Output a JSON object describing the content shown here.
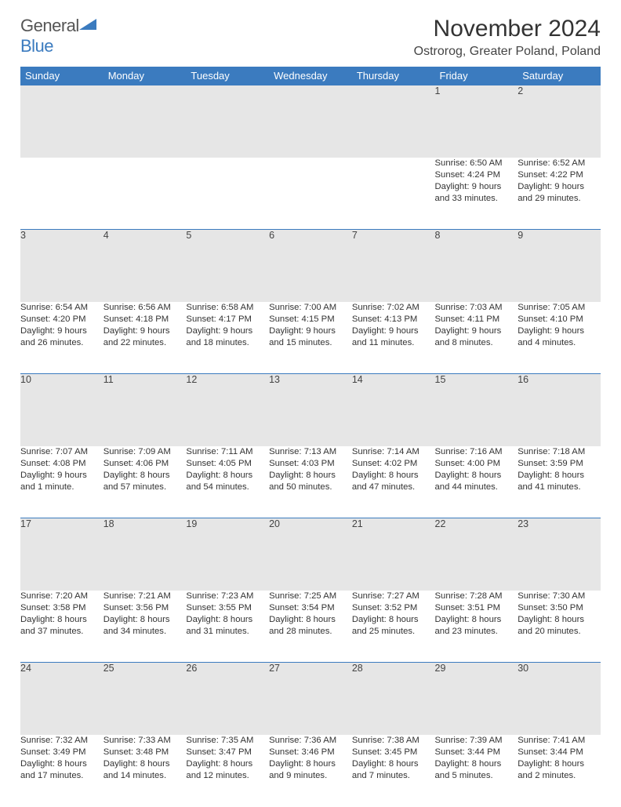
{
  "brand": {
    "part1": "General",
    "part2": "Blue"
  },
  "title": "November 2024",
  "location": "Ostrorog, Greater Poland, Poland",
  "colors": {
    "header_bg": "#3b7bbf",
    "header_text": "#ffffff",
    "daynum_bg": "#e6e6e6",
    "row_border": "#3b7bbf",
    "page_bg": "#ffffff",
    "text": "#333333"
  },
  "weekdays": [
    "Sunday",
    "Monday",
    "Tuesday",
    "Wednesday",
    "Thursday",
    "Friday",
    "Saturday"
  ],
  "weeks": [
    [
      null,
      null,
      null,
      null,
      null,
      {
        "n": "1",
        "sr": "Sunrise: 6:50 AM",
        "ss": "Sunset: 4:24 PM",
        "d1": "Daylight: 9 hours",
        "d2": "and 33 minutes."
      },
      {
        "n": "2",
        "sr": "Sunrise: 6:52 AM",
        "ss": "Sunset: 4:22 PM",
        "d1": "Daylight: 9 hours",
        "d2": "and 29 minutes."
      }
    ],
    [
      {
        "n": "3",
        "sr": "Sunrise: 6:54 AM",
        "ss": "Sunset: 4:20 PM",
        "d1": "Daylight: 9 hours",
        "d2": "and 26 minutes."
      },
      {
        "n": "4",
        "sr": "Sunrise: 6:56 AM",
        "ss": "Sunset: 4:18 PM",
        "d1": "Daylight: 9 hours",
        "d2": "and 22 minutes."
      },
      {
        "n": "5",
        "sr": "Sunrise: 6:58 AM",
        "ss": "Sunset: 4:17 PM",
        "d1": "Daylight: 9 hours",
        "d2": "and 18 minutes."
      },
      {
        "n": "6",
        "sr": "Sunrise: 7:00 AM",
        "ss": "Sunset: 4:15 PM",
        "d1": "Daylight: 9 hours",
        "d2": "and 15 minutes."
      },
      {
        "n": "7",
        "sr": "Sunrise: 7:02 AM",
        "ss": "Sunset: 4:13 PM",
        "d1": "Daylight: 9 hours",
        "d2": "and 11 minutes."
      },
      {
        "n": "8",
        "sr": "Sunrise: 7:03 AM",
        "ss": "Sunset: 4:11 PM",
        "d1": "Daylight: 9 hours",
        "d2": "and 8 minutes."
      },
      {
        "n": "9",
        "sr": "Sunrise: 7:05 AM",
        "ss": "Sunset: 4:10 PM",
        "d1": "Daylight: 9 hours",
        "d2": "and 4 minutes."
      }
    ],
    [
      {
        "n": "10",
        "sr": "Sunrise: 7:07 AM",
        "ss": "Sunset: 4:08 PM",
        "d1": "Daylight: 9 hours",
        "d2": "and 1 minute."
      },
      {
        "n": "11",
        "sr": "Sunrise: 7:09 AM",
        "ss": "Sunset: 4:06 PM",
        "d1": "Daylight: 8 hours",
        "d2": "and 57 minutes."
      },
      {
        "n": "12",
        "sr": "Sunrise: 7:11 AM",
        "ss": "Sunset: 4:05 PM",
        "d1": "Daylight: 8 hours",
        "d2": "and 54 minutes."
      },
      {
        "n": "13",
        "sr": "Sunrise: 7:13 AM",
        "ss": "Sunset: 4:03 PM",
        "d1": "Daylight: 8 hours",
        "d2": "and 50 minutes."
      },
      {
        "n": "14",
        "sr": "Sunrise: 7:14 AM",
        "ss": "Sunset: 4:02 PM",
        "d1": "Daylight: 8 hours",
        "d2": "and 47 minutes."
      },
      {
        "n": "15",
        "sr": "Sunrise: 7:16 AM",
        "ss": "Sunset: 4:00 PM",
        "d1": "Daylight: 8 hours",
        "d2": "and 44 minutes."
      },
      {
        "n": "16",
        "sr": "Sunrise: 7:18 AM",
        "ss": "Sunset: 3:59 PM",
        "d1": "Daylight: 8 hours",
        "d2": "and 41 minutes."
      }
    ],
    [
      {
        "n": "17",
        "sr": "Sunrise: 7:20 AM",
        "ss": "Sunset: 3:58 PM",
        "d1": "Daylight: 8 hours",
        "d2": "and 37 minutes."
      },
      {
        "n": "18",
        "sr": "Sunrise: 7:21 AM",
        "ss": "Sunset: 3:56 PM",
        "d1": "Daylight: 8 hours",
        "d2": "and 34 minutes."
      },
      {
        "n": "19",
        "sr": "Sunrise: 7:23 AM",
        "ss": "Sunset: 3:55 PM",
        "d1": "Daylight: 8 hours",
        "d2": "and 31 minutes."
      },
      {
        "n": "20",
        "sr": "Sunrise: 7:25 AM",
        "ss": "Sunset: 3:54 PM",
        "d1": "Daylight: 8 hours",
        "d2": "and 28 minutes."
      },
      {
        "n": "21",
        "sr": "Sunrise: 7:27 AM",
        "ss": "Sunset: 3:52 PM",
        "d1": "Daylight: 8 hours",
        "d2": "and 25 minutes."
      },
      {
        "n": "22",
        "sr": "Sunrise: 7:28 AM",
        "ss": "Sunset: 3:51 PM",
        "d1": "Daylight: 8 hours",
        "d2": "and 23 minutes."
      },
      {
        "n": "23",
        "sr": "Sunrise: 7:30 AM",
        "ss": "Sunset: 3:50 PM",
        "d1": "Daylight: 8 hours",
        "d2": "and 20 minutes."
      }
    ],
    [
      {
        "n": "24",
        "sr": "Sunrise: 7:32 AM",
        "ss": "Sunset: 3:49 PM",
        "d1": "Daylight: 8 hours",
        "d2": "and 17 minutes."
      },
      {
        "n": "25",
        "sr": "Sunrise: 7:33 AM",
        "ss": "Sunset: 3:48 PM",
        "d1": "Daylight: 8 hours",
        "d2": "and 14 minutes."
      },
      {
        "n": "26",
        "sr": "Sunrise: 7:35 AM",
        "ss": "Sunset: 3:47 PM",
        "d1": "Daylight: 8 hours",
        "d2": "and 12 minutes."
      },
      {
        "n": "27",
        "sr": "Sunrise: 7:36 AM",
        "ss": "Sunset: 3:46 PM",
        "d1": "Daylight: 8 hours",
        "d2": "and 9 minutes."
      },
      {
        "n": "28",
        "sr": "Sunrise: 7:38 AM",
        "ss": "Sunset: 3:45 PM",
        "d1": "Daylight: 8 hours",
        "d2": "and 7 minutes."
      },
      {
        "n": "29",
        "sr": "Sunrise: 7:39 AM",
        "ss": "Sunset: 3:44 PM",
        "d1": "Daylight: 8 hours",
        "d2": "and 5 minutes."
      },
      {
        "n": "30",
        "sr": "Sunrise: 7:41 AM",
        "ss": "Sunset: 3:44 PM",
        "d1": "Daylight: 8 hours",
        "d2": "and 2 minutes."
      }
    ]
  ]
}
